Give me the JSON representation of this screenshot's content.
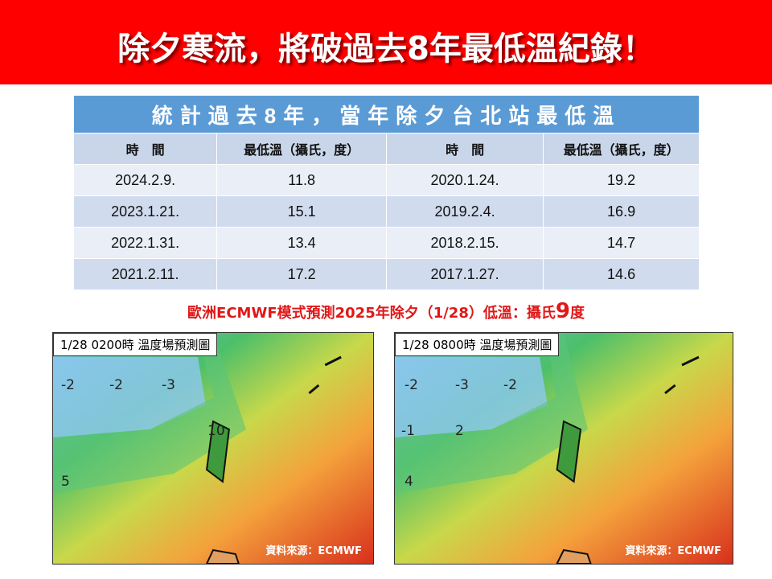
{
  "banner": {
    "title": "除夕寒流，將破過去8年最低溫紀錄！"
  },
  "table": {
    "title": "統計過去8年，當年除夕台北站最低溫",
    "headers": [
      "時　間",
      "最低溫（攝氏，度）",
      "時　間",
      "最低溫（攝氏，度）"
    ],
    "rows": [
      [
        "2024.2.9.",
        "11.8",
        "2020.1.24.",
        "19.2"
      ],
      [
        "2023.1.21.",
        "15.1",
        "2019.2.4.",
        "16.9"
      ],
      [
        "2022.1.31.",
        "13.4",
        "2018.2.15.",
        "14.7"
      ],
      [
        "2021.2.11.",
        "17.2",
        "2017.1.27.",
        "14.6"
      ]
    ]
  },
  "forecast": {
    "text": "歐洲ECMWF模式預測2025年除夕（1/28）低溫：攝氏",
    "value": "9",
    "unit": "度"
  },
  "maps": [
    {
      "label": "1/28 0200時  溫度場預測圖",
      "source": "資料來源：ECMWF",
      "contours": [
        "-2",
        "-2",
        "-3",
        "10",
        "5"
      ]
    },
    {
      "label": "1/28 0800時  溫度場預測圖",
      "source": "資料來源：ECMWF",
      "contours": [
        "-2",
        "-3",
        "-2",
        "-1",
        "2",
        "4"
      ]
    }
  ]
}
